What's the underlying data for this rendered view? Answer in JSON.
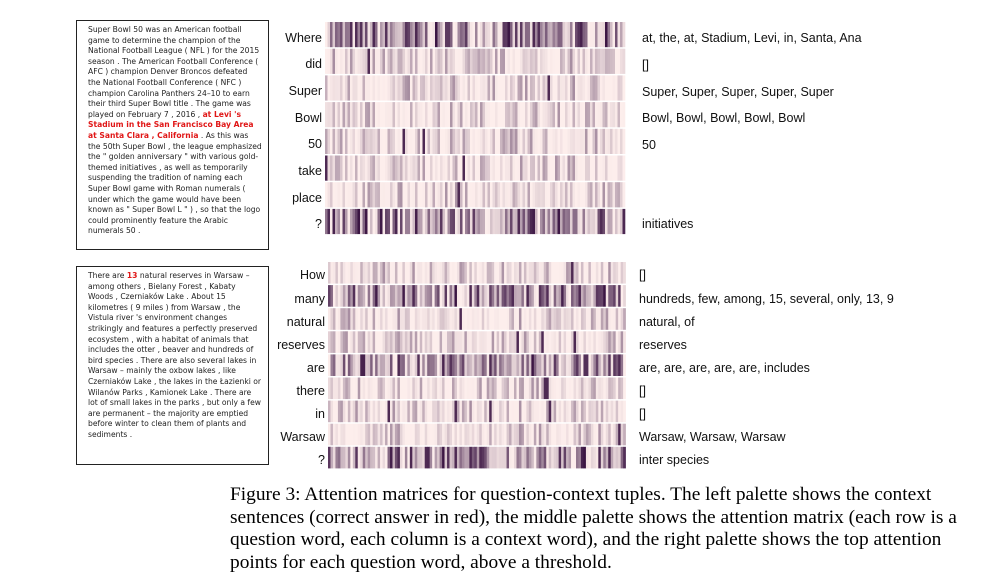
{
  "panels": [
    {
      "context_before": "Super Bowl 50 was an American football game to determine the champion of the National Football League ( NFL ) for the 2015 season . The American Football Conference ( AFC ) champion Denver Broncos defeated the National Football Conference ( NFC ) champion Carolina Panthers 24–10 to earn their third Super Bowl title . The game was played on February 7 , 2016 , ",
      "context_answer": "at Levi 's Stadium in the San Francisco Bay Area at Santa Clara , California",
      "context_after": " . As this was the 50th Super Bowl , the league emphasized the \" golden anniversary \" with various gold-themed initiatives , as well as temporarily suspending the tradition of naming each Super Bowl game with Roman numerals ( under which the game would have been known as \" Super Bowl L \" ) , so that the logo could prominently feature the Arabic numerals 50 .",
      "question_words": [
        "Where",
        "did",
        "Super",
        "Bowl",
        "50",
        "take",
        "place",
        "?"
      ],
      "top_attention": [
        "at, the, at, Stadium, Levi, in, Santa, Ana",
        "[]",
        "Super, Super, Super, Super, Super",
        "Bowl, Bowl, Bowl, Bowl, Bowl",
        "50",
        "",
        "",
        "initiatives"
      ]
    },
    {
      "context_before": "There are ",
      "context_answer": "13",
      "context_after": " natural reserves in Warsaw – among others , Bielany Forest , Kabaty Woods , Czerniaków Lake . About 15 kilometres ( 9 miles ) from Warsaw , the Vistula river 's environment changes strikingly and features a perfectly preserved ecosystem , with a habitat of animals that includes the otter , beaver and hundreds of bird species . There are also several lakes in Warsaw – mainly the oxbow lakes , like Czerniaków Lake , the lakes in the Łazienki or Wilanów Parks , Kamionek Lake . There are lot of small lakes in the parks , but only a few are permanent – the majority are emptied before winter to clean them of plants and sediments .",
      "question_words": [
        "How",
        "many",
        "natural",
        "reserves",
        "are",
        "there",
        "in",
        "Warsaw",
        "?"
      ],
      "top_attention": [
        "[]",
        "hundreds, few, among, 15, several, only, 13, 9",
        "natural, of",
        "reserves",
        "are, are, are, are, are, includes",
        "[]",
        "[]",
        "Warsaw, Warsaw, Warsaw",
        "inter species"
      ]
    }
  ],
  "caption": "Figure 3: Attention matrices for question-context tuples. The left palette shows the context sentences (correct answer in red), the middle palette shows the attention matrix (each row is a question word, each column is a context word), and the right palette shows the top attention points for each question word, above a threshold."
}
